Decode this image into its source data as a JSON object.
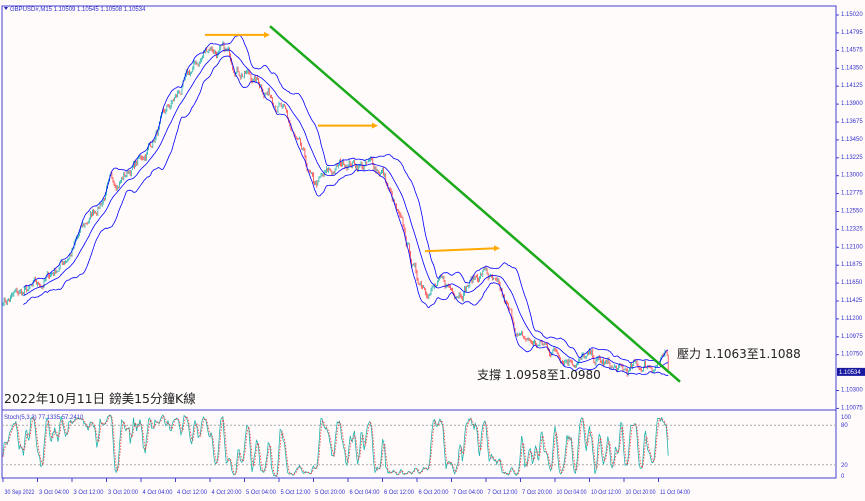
{
  "chart_data": {
    "type": "candlestick",
    "symbol_header": "GBPUSD#,M15",
    "ohlc_header": "1.10509 1.10545 1.10508 1.10534",
    "current_price": "1.10534",
    "y_ticks": [
      "1.15020",
      "1.14795",
      "1.14575",
      "1.14350",
      "1.14125",
      "1.13900",
      "1.13675",
      "1.13450",
      "1.13225",
      "1.13000",
      "1.12775",
      "1.12550",
      "1.12325",
      "1.12100",
      "1.11875",
      "1.11650",
      "1.11425",
      "1.11200",
      "1.10975",
      "1.10750",
      "1.10300",
      "1.10075"
    ],
    "ylim": [
      1.1002,
      1.1515
    ],
    "x_ticks": [
      "30 Sep 2022",
      "3 Oct 04:00",
      "3 Oct 12:00",
      "3 Oct 20:00",
      "4 Oct 04:00",
      "4 Oct 12:00",
      "4 Oct 20:00",
      "5 Oct 04:00",
      "5 Oct 12:00",
      "5 Oct 20:00",
      "6 Oct 04:00",
      "6 Oct 12:00",
      "6 Oct 20:00",
      "7 Oct 04:00",
      "7 Oct 12:00",
      "7 Oct 20:00",
      "10 Oct 04:00",
      "10 Oct 12:00",
      "10 Oct 20:00",
      "11 Oct 04:00"
    ],
    "approx_close_at_ticks": [
      1.1144,
      1.1156,
      1.1207,
      1.1282,
      1.132,
      1.1395,
      1.1464,
      1.1433,
      1.1395,
      1.1282,
      1.132,
      1.1307,
      1.1169,
      1.1156,
      1.1181,
      1.1093,
      1.1081,
      1.1068,
      1.105,
      1.1068
    ],
    "last_close": 1.10534,
    "indicators": {
      "bollinger_bands": {
        "color": "#0000ff"
      }
    },
    "trendline": {
      "color": "#1aaa1a",
      "from_price": 1.1488,
      "to_price": 1.1041
    },
    "arrows": [
      {
        "price": 1.1477,
        "color": "#ffaa00"
      },
      {
        "price": 1.1363,
        "color": "#ffaa00"
      },
      {
        "price": 1.1205,
        "color": "#ffaa00"
      }
    ],
    "oscillator": {
      "label": "Stoch(5,3,3) 77.1335 57.2410",
      "levels": [
        80,
        20
      ],
      "ticks": [
        "100",
        "80",
        "20",
        "0"
      ],
      "main_color": "#20b2aa",
      "signal_color": "#ff3030"
    },
    "colors": {
      "bull": "#20b2aa",
      "bear": "#ff4040",
      "axis": "#4040d0"
    },
    "annotations": {
      "title": "2022年10月11日 鎊美15分鐘K線",
      "resistance": "壓力 1.1063至1.1088",
      "support": "支撐 1.0958至1.0980"
    }
  }
}
